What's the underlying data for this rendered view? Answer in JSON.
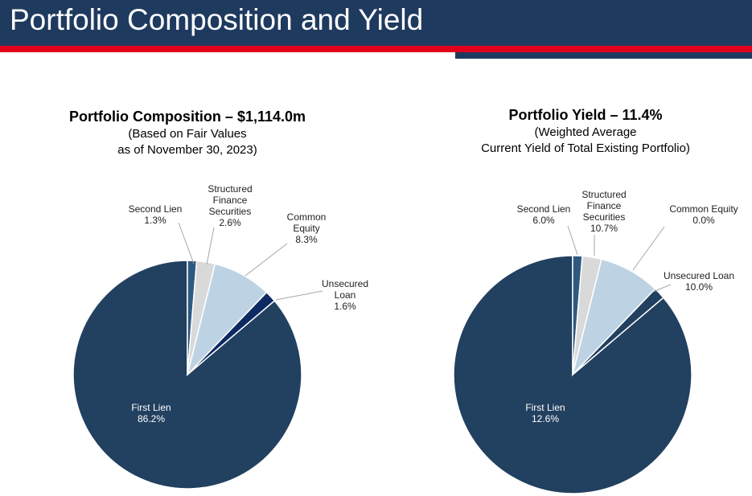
{
  "header": {
    "title": "Portfolio Composition and Yield",
    "colors": {
      "band": "#1f3a5f",
      "accent": "#e0001b"
    }
  },
  "chart_data": [
    {
      "type": "pie",
      "title": "Portfolio Composition – $1,114.0m",
      "subtitle_lines": [
        "(Based on Fair Values",
        "as of November 30, 2023)"
      ],
      "slices": [
        {
          "label_lines": [
            "First Lien",
            "86.2%"
          ],
          "value": 86.2,
          "color": "#22405f"
        },
        {
          "label_lines": [
            "Second Lien",
            "1.3%"
          ],
          "value": 1.3,
          "color": "#2e5a80"
        },
        {
          "label_lines": [
            "Structured",
            "Finance",
            "Securities",
            "2.6%"
          ],
          "value": 2.6,
          "color": "#d9d9d9"
        },
        {
          "label_lines": [
            "Common",
            "Equity",
            "8.3%"
          ],
          "value": 8.3,
          "color": "#bdd3e4"
        },
        {
          "label_lines": [
            "Unsecured",
            "Loan",
            "1.6%"
          ],
          "value": 1.6,
          "color": "#0d2a63"
        }
      ]
    },
    {
      "type": "pie",
      "title": "Portfolio Yield – 11.4%",
      "subtitle_lines": [
        "(Weighted Average",
        "Current Yield of Total Existing Portfolio)"
      ],
      "slices": [
        {
          "label_lines": [
            "First Lien",
            "12.6%"
          ],
          "value": 86.2,
          "color": "#22405f"
        },
        {
          "label_lines": [
            "Second Lien",
            "6.0%"
          ],
          "value": 1.3,
          "color": "#2e5a80"
        },
        {
          "label_lines": [
            "Structured",
            "Finance",
            "Securities",
            "10.7%"
          ],
          "value": 2.6,
          "color": "#d9d9d9"
        },
        {
          "label_lines": [
            "Common Equity",
            "0.0%"
          ],
          "value": 8.3,
          "color": "#bdd3e4"
        },
        {
          "label_lines": [
            "Unsecured Loan",
            "10.0%"
          ],
          "value": 1.6,
          "color": "#22405f"
        }
      ]
    }
  ]
}
